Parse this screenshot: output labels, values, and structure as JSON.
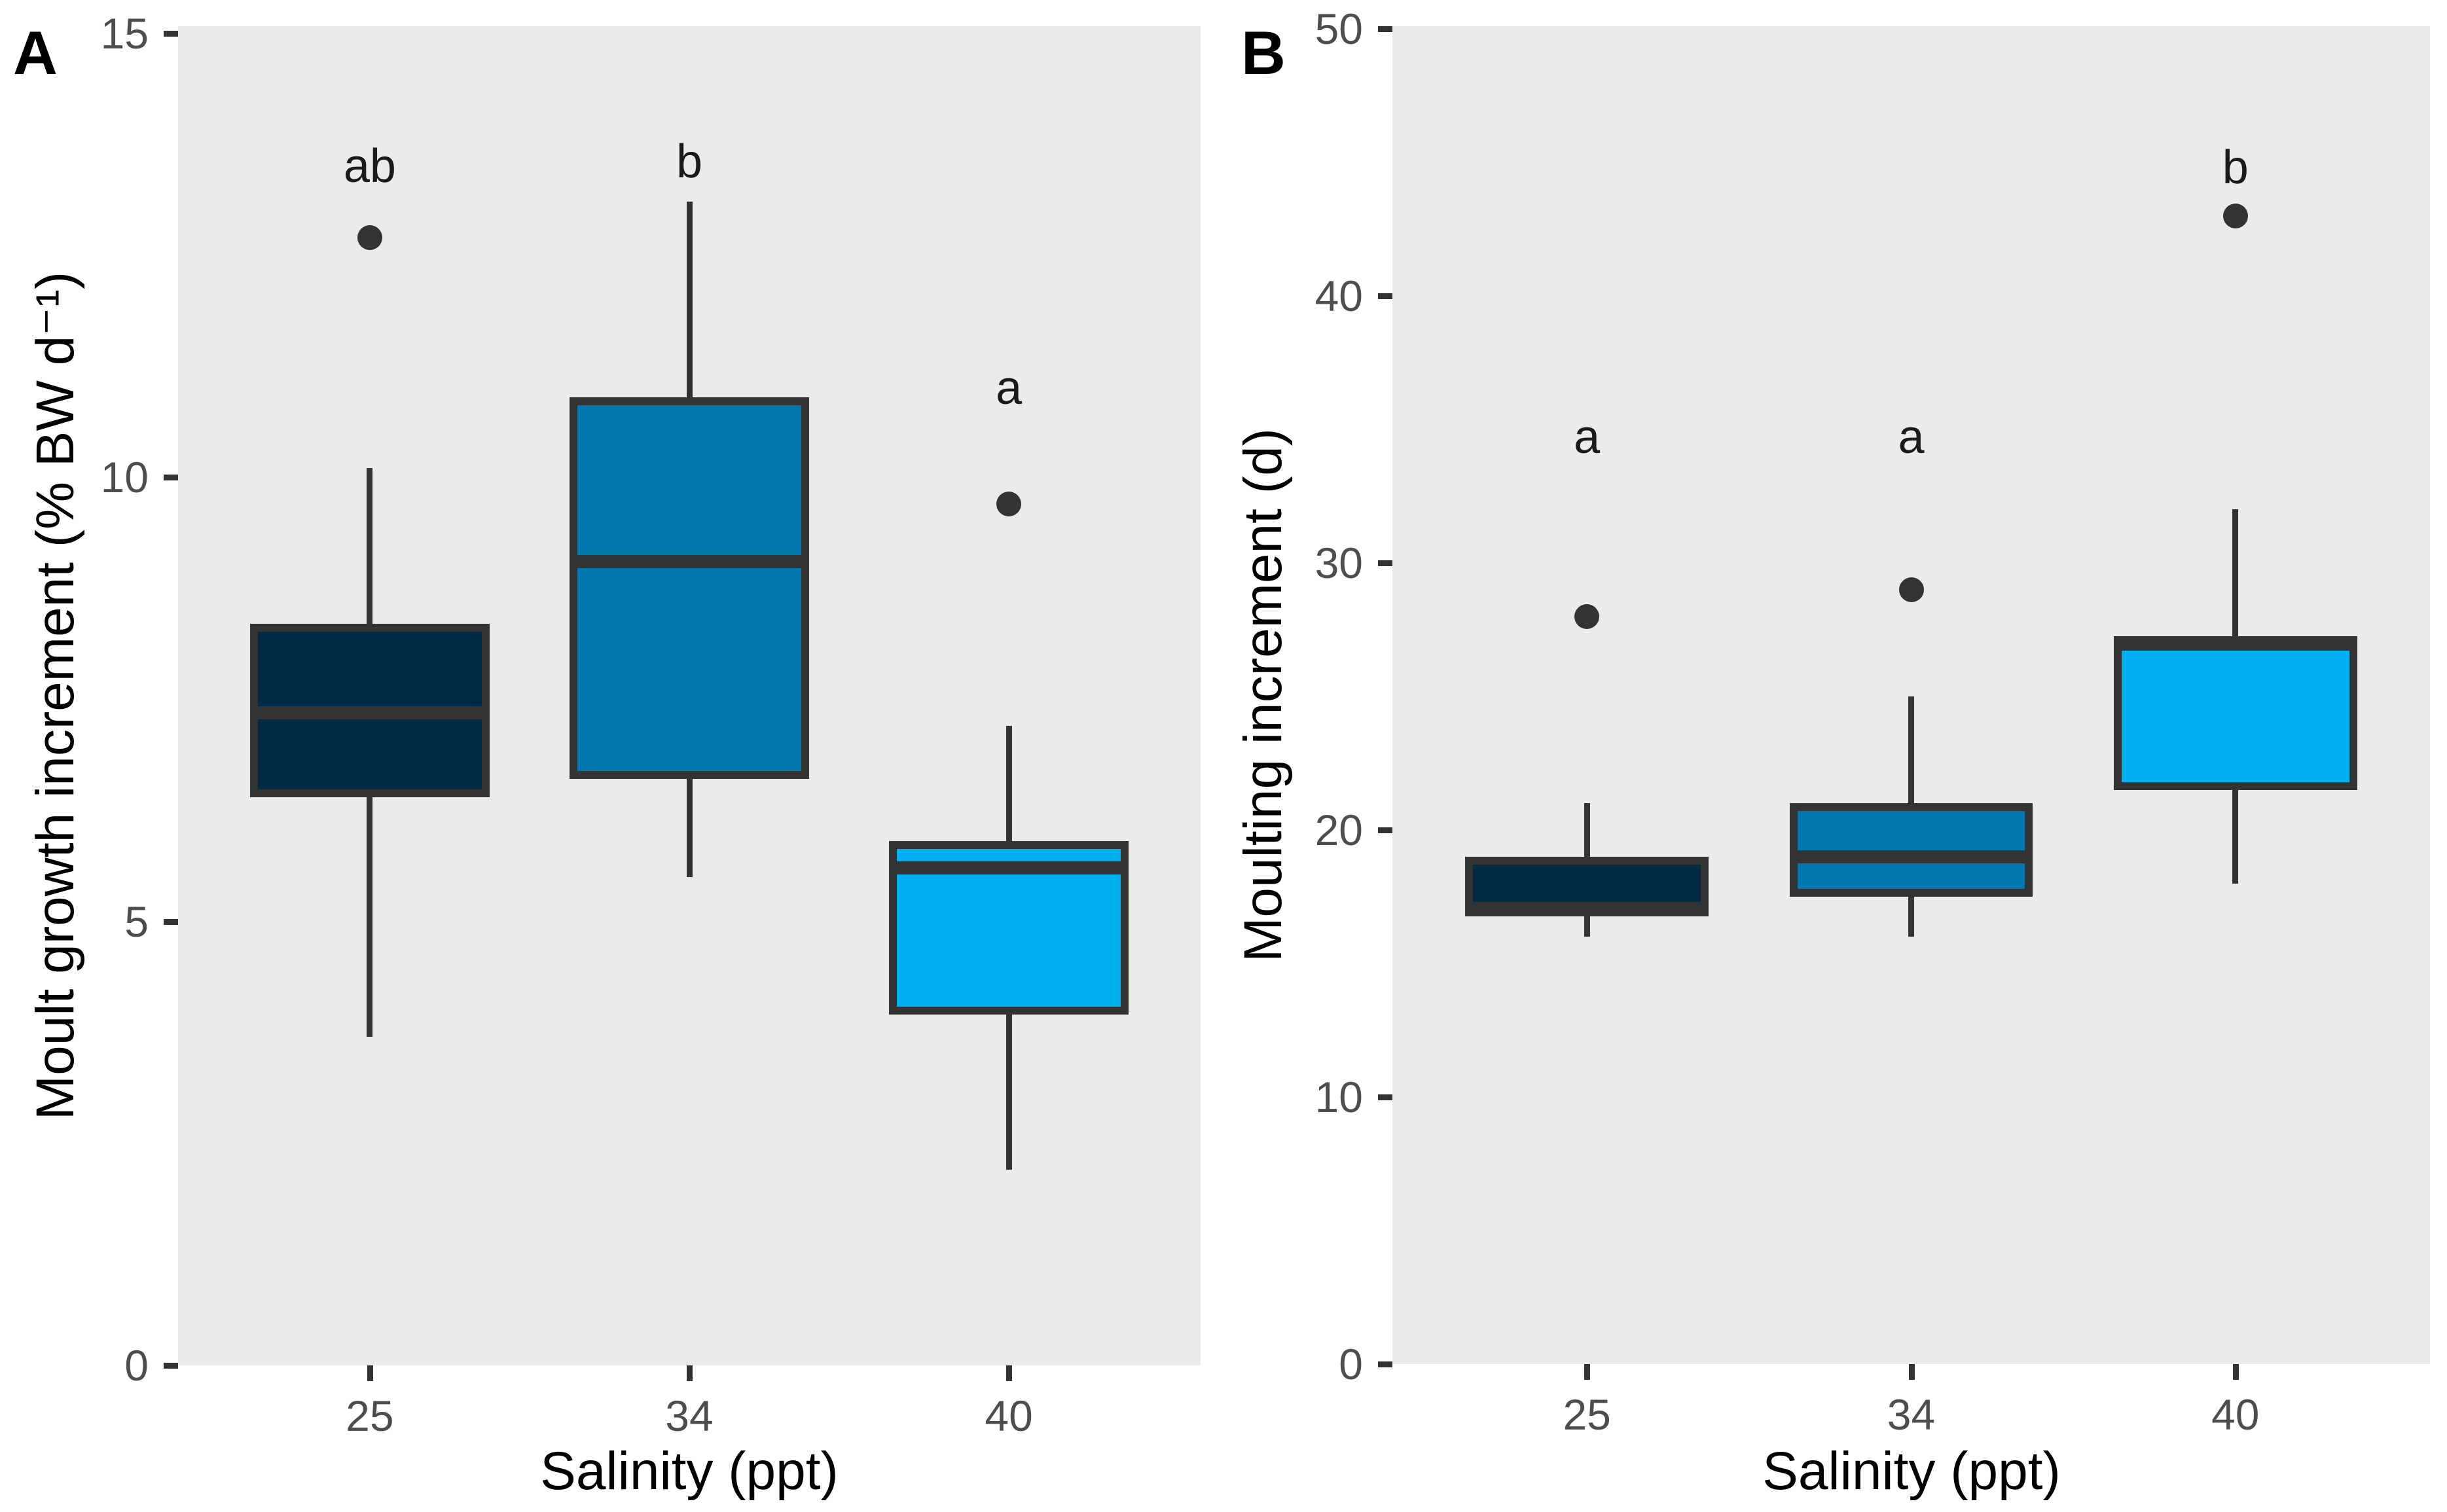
{
  "chart_data": {
    "type": "boxplot",
    "styles": {
      "panel_bg": "#EBEBEB",
      "line_color": "#333333",
      "tick_label_color": "#4D4D4D",
      "axis_title_color": "#000000",
      "fill_salinity_25": "#012B46",
      "fill_salinity_34": "#0077AD",
      "fill_salinity_40": "#00B0F0"
    },
    "panels": [
      {
        "label": "A",
        "ylabel": "Moult growth increment (% BW d⁻¹)",
        "xlabel": "Salinity (ppt)",
        "ylim": [
          0,
          15.1
        ],
        "yticks": [
          0,
          5,
          10,
          15
        ],
        "categories": [
          "25",
          "34",
          "40"
        ],
        "boxes": [
          {
            "category": "25",
            "fill": "#012B46",
            "min": 3.7,
            "q1": 6.4,
            "median": 7.35,
            "q3": 8.35,
            "max": 10.1,
            "outliers": [
              12.7
            ],
            "sig_letter": "ab",
            "letter_y": 13.5
          },
          {
            "category": "34",
            "fill": "#0077AD",
            "min": 5.5,
            "q1": 6.6,
            "median": 9.05,
            "q3": 10.9,
            "max": 13.1,
            "outliers": [],
            "sig_letter": "b",
            "letter_y": 13.55
          },
          {
            "category": "40",
            "fill": "#00B0F0",
            "min": 2.2,
            "q1": 3.95,
            "median": 5.6,
            "q3": 5.9,
            "max": 7.2,
            "outliers": [
              9.7
            ],
            "sig_letter": "a",
            "letter_y": 11.0
          }
        ]
      },
      {
        "label": "B",
        "ylabel": "Moulting increment (d)",
        "xlabel": "Salinity (ppt)",
        "ylim": [
          0,
          50.1
        ],
        "yticks": [
          0,
          10,
          20,
          30,
          40,
          50
        ],
        "categories": [
          "25",
          "34",
          "40"
        ],
        "boxes": [
          {
            "category": "25",
            "fill": "#012B46",
            "min": 16,
            "q1": 17,
            "median": 17,
            "q3": 19,
            "max": 21,
            "outliers": [
              28
            ],
            "sig_letter": "a",
            "letter_y": 34.7
          },
          {
            "category": "34",
            "fill": "#0077AD",
            "min": 16,
            "q1": 17.5,
            "median": 19,
            "q3": 21,
            "max": 25,
            "outliers": [
              29
            ],
            "sig_letter": "a",
            "letter_y": 34.7
          },
          {
            "category": "40",
            "fill": "#00B0F0",
            "min": 18,
            "q1": 21.5,
            "median": 27,
            "q3": 27,
            "max": 32,
            "outliers": [
              43
            ],
            "sig_letter": "b",
            "letter_y": 44.8
          }
        ]
      }
    ]
  }
}
